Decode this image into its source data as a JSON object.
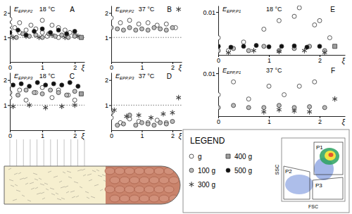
{
  "chart_data": [
    {
      "type": "scatter",
      "title": "A",
      "subtitle": "18 °C",
      "y_label": "E",
      "y_label_sub": "EPP,P2",
      "x_label": "ξ",
      "xlim": [
        0,
        2.3
      ],
      "xticks": [
        0,
        1,
        2
      ],
      "ylim": [
        0,
        2.3
      ],
      "yticks": [
        1,
        2
      ],
      "reference": 1,
      "series": [
        {
          "name": "g",
          "marker": "circle",
          "color": "#ffffff",
          "x": [
            0,
            0,
            0,
            0.15,
            0.3,
            0.3,
            0.5,
            0.65,
            0.8,
            1.0,
            1.0,
            1.15,
            1.3,
            1.5,
            1.5,
            1.7,
            1.85,
            2.0
          ],
          "values": [
            1.75,
            1.5,
            1.3,
            1.4,
            1.6,
            1.2,
            1.3,
            1.5,
            1.35,
            1.7,
            1.2,
            1.05,
            1.5,
            1.4,
            1.0,
            1.3,
            1.2,
            1.1
          ]
        },
        {
          "name": "100 g",
          "marker": "circle",
          "color": "#bdbdbd",
          "x": [
            0,
            0.2,
            0.4,
            0.6,
            0.8,
            1.0,
            1.2,
            1.4,
            1.6,
            1.8,
            2.0
          ],
          "values": [
            1.1,
            1.0,
            1.15,
            1.05,
            1.1,
            1.0,
            1.15,
            1.05,
            1.1,
            1.0,
            1.05
          ]
        },
        {
          "name": "300 g",
          "marker": "asterisk",
          "color": "#444444",
          "x": [
            0.1,
            0.5,
            0.9,
            1.3,
            1.7,
            2.1
          ],
          "values": [
            1.0,
            1.05,
            1.0,
            1.1,
            1.0,
            1.05
          ]
        },
        {
          "name": "400 g",
          "marker": "square",
          "color": "#9e9e9e",
          "x": [
            2.2
          ],
          "values": [
            1.0
          ]
        },
        {
          "name": "500 g",
          "marker": "circle",
          "color": "#111111",
          "x": [
            0,
            0.25,
            0.5,
            0.75,
            1.0,
            1.25,
            1.5,
            1.75,
            2.0
          ],
          "values": [
            1.2,
            1.3,
            1.1,
            1.25,
            1.35,
            1.2,
            1.3,
            1.15,
            1.25
          ]
        }
      ]
    },
    {
      "type": "scatter",
      "title": "B",
      "subtitle": "37 °C",
      "y_label": "E",
      "y_label_sub": "EPP,P2",
      "x_label": "ξ",
      "xlim": [
        0,
        2.3
      ],
      "xticks": [
        0,
        1,
        2
      ],
      "ylim": [
        0,
        2.3
      ],
      "yticks": [
        1,
        2
      ],
      "reference": 1,
      "series": [
        {
          "name": "g",
          "marker": "circle",
          "color": "#ffffff",
          "x": [
            0,
            0.3,
            0.6,
            0.9,
            1.2,
            1.5,
            1.8,
            2.1
          ],
          "values": [
            1.8,
            1.6,
            1.7,
            1.55,
            1.6,
            1.5,
            1.55,
            1.4
          ]
        },
        {
          "name": "100 g",
          "marker": "circle",
          "color": "#bdbdbd",
          "x": [
            0,
            0.2,
            0.4,
            0.6,
            0.8,
            1.0,
            1.2,
            1.4,
            1.6,
            1.8,
            2.0
          ],
          "values": [
            1.4,
            1.35,
            1.3,
            1.4,
            1.3,
            1.35,
            1.3,
            1.4,
            1.35,
            1.3,
            1.4
          ]
        },
        {
          "name": "300 g",
          "marker": "asterisk",
          "color": "#444444",
          "x": [
            2.2
          ],
          "values": [
            2.15
          ]
        }
      ]
    },
    {
      "type": "scatter",
      "title": "C",
      "subtitle": "18 °C",
      "y_label": "E",
      "y_label_sub": "EPP,P3",
      "x_label": "ξ",
      "xlim": [
        0,
        2.3
      ],
      "xticks": [
        0,
        1,
        2
      ],
      "ylim": [
        0,
        2.3
      ],
      "yticks": [
        1,
        2
      ],
      "reference": 1,
      "series": [
        {
          "name": "g",
          "marker": "circle",
          "color": "#ffffff",
          "x": [
            0,
            0,
            0.3,
            0.5,
            0.8,
            1.0,
            1.3,
            1.5,
            1.8,
            2.0
          ],
          "values": [
            1.8,
            1.3,
            1.6,
            1.2,
            1.5,
            1.7,
            1.3,
            1.6,
            1.4,
            1.2
          ]
        },
        {
          "name": "100 g",
          "marker": "circle",
          "color": "#bdbdbd",
          "x": [
            0,
            0.25,
            0.5,
            0.75,
            1.0,
            1.25,
            1.5,
            1.75,
            2.0
          ],
          "values": [
            1.5,
            1.4,
            1.6,
            1.5,
            1.45,
            1.6,
            1.5,
            1.4,
            1.55
          ]
        },
        {
          "name": "300 g",
          "marker": "asterisk",
          "color": "#444444",
          "x": [
            0.1,
            0.6,
            1.1,
            1.6,
            2.0
          ],
          "values": [
            0.95,
            1.0,
            0.9,
            0.95,
            1.0
          ]
        },
        {
          "name": "400 g",
          "marker": "square",
          "color": "#9e9e9e",
          "x": [
            2.2
          ],
          "values": [
            1.45
          ]
        },
        {
          "name": "500 g",
          "marker": "circle",
          "color": "#111111",
          "x": [
            0.1,
            0.35,
            0.6,
            0.85,
            1.1,
            1.35,
            1.6,
            1.85,
            2.1
          ],
          "values": [
            1.8,
            1.85,
            1.75,
            1.9,
            1.8,
            1.85,
            1.8,
            1.9,
            1.75
          ]
        }
      ]
    },
    {
      "type": "scatter",
      "title": "D",
      "subtitle": "37 °C",
      "y_label": "E",
      "y_label_sub": "EPP,P3",
      "x_label": "ξ",
      "xlim": [
        0,
        2.3
      ],
      "xticks": [
        0,
        1,
        2
      ],
      "ylim": [
        0,
        2.3
      ],
      "yticks": [
        1,
        2
      ],
      "reference": 1,
      "series": [
        {
          "name": "g",
          "marker": "circle",
          "color": "#ffffff",
          "x": [
            0,
            0.3,
            0.6,
            0.9,
            1.2,
            1.5,
            1.8
          ],
          "values": [
            0.5,
            0.3,
            0.45,
            0.35,
            0.3,
            0.4,
            0.3
          ]
        },
        {
          "name": "100 g",
          "marker": "circle",
          "color": "#bdbdbd",
          "x": [
            0,
            0.2,
            0.4,
            0.6,
            0.8,
            1.0,
            1.2,
            1.4,
            1.6,
            1.8,
            2.0
          ],
          "values": [
            0.7,
            0.2,
            0.25,
            0.6,
            0.2,
            0.3,
            0.25,
            0.2,
            0.3,
            0.25,
            0.35
          ]
        },
        {
          "name": "300 g",
          "marker": "asterisk",
          "color": "#444444",
          "x": [
            0.1,
            0.5,
            0.9,
            1.3,
            1.7,
            2.0,
            2.2
          ],
          "values": [
            0.8,
            0.55,
            0.6,
            0.5,
            0.65,
            0.7,
            1.3
          ]
        }
      ]
    },
    {
      "type": "scatter",
      "title": "E",
      "subtitle": "18 °C",
      "y_label": "E",
      "y_label_sub": "EPP,P1",
      "x_label": "ξ",
      "xlim": [
        0,
        2.5
      ],
      "xticks": [
        0,
        1,
        2
      ],
      "ylim": [
        0,
        0.0115
      ],
      "yticks": [
        0.01
      ],
      "series": [
        {
          "name": "g",
          "marker": "circle",
          "color": "#ffffff",
          "x": [
            0,
            0,
            0.2,
            0.5,
            0.9,
            1.2,
            1.5,
            1.6,
            1.9,
            2.0,
            2.2
          ],
          "values": [
            0.002,
            0.004,
            0.001,
            0.003,
            0.006,
            0.008,
            0.009,
            0.011,
            0.007,
            0.008,
            0.004
          ]
        },
        {
          "name": "100 g",
          "marker": "circle",
          "color": "#bdbdbd",
          "x": [
            0,
            0.3,
            0.6,
            0.9,
            1.2,
            1.5,
            1.8,
            2.1
          ],
          "values": [
            0.001,
            0.0015,
            0.001,
            0.002,
            0.001,
            0.0015,
            0.002,
            0.001
          ]
        },
        {
          "name": "300 g",
          "marker": "asterisk",
          "color": "#444444",
          "x": [
            0.2,
            0.7,
            1.2,
            1.7,
            2.1
          ],
          "values": [
            0.0005,
            0.001,
            0.0008,
            0.001,
            0.0005
          ]
        },
        {
          "name": "400 g",
          "marker": "square",
          "color": "#9e9e9e",
          "x": [
            2.3
          ],
          "values": [
            0.002
          ]
        },
        {
          "name": "500 g",
          "marker": "circle",
          "color": "#111111",
          "x": [
            0,
            0.25,
            0.5,
            0.75,
            1.0,
            1.25,
            1.5,
            1.75,
            2.0
          ],
          "values": [
            0.002,
            0.0018,
            0.002,
            0.0022,
            0.0019,
            0.002,
            0.0021,
            0.0018,
            0.002
          ]
        }
      ]
    },
    {
      "type": "scatter",
      "title": "F",
      "subtitle": "37 °C",
      "y_label": "E",
      "y_label_sub": "EPP,P1",
      "x_label": "ξ",
      "xlim": [
        0,
        2.5
      ],
      "xticks": [
        0,
        1,
        2
      ],
      "ylim": [
        0,
        0.0115
      ],
      "yticks": [
        0.01
      ],
      "series": [
        {
          "name": "g",
          "marker": "circle",
          "color": "#ffffff",
          "x": [
            0,
            0.3,
            0.6,
            1.0,
            1.3,
            1.6,
            1.9
          ],
          "values": [
            0.005,
            0.008,
            0.004,
            0.007,
            0.005,
            0.007,
            0.008
          ]
        },
        {
          "name": "100 g",
          "marker": "circle",
          "color": "#bdbdbd",
          "x": [
            0,
            0.3,
            0.6,
            0.9,
            1.2,
            1.5,
            1.8,
            2.1
          ],
          "values": [
            0.002,
            0.0025,
            0.002,
            0.002,
            0.0025,
            0.002,
            0.0022,
            0.002
          ]
        },
        {
          "name": "300 g",
          "marker": "asterisk",
          "color": "#444444",
          "x": [
            0.9,
            1.2,
            1.5,
            1.8,
            2.3
          ],
          "values": [
            0.001,
            0.0015,
            0.0012,
            0.001,
            0.004
          ]
        }
      ]
    }
  ],
  "legend_box": {
    "title": "LEGEND",
    "entries": [
      {
        "name": "g",
        "marker": "circle",
        "color": "#ffffff"
      },
      {
        "name": "100 g",
        "marker": "circle",
        "color": "#bdbdbd"
      },
      {
        "name": "300 g",
        "marker": "asterisk",
        "color": "#444444"
      },
      {
        "name": "400 g",
        "marker": "square",
        "color": "#9e9e9e"
      },
      {
        "name": "500 g",
        "marker": "circle",
        "color": "#111111"
      }
    ]
  },
  "inset": {
    "x_label": "FSC",
    "y_label": "SSC",
    "gates": [
      "P1",
      "P2",
      "P3"
    ]
  }
}
